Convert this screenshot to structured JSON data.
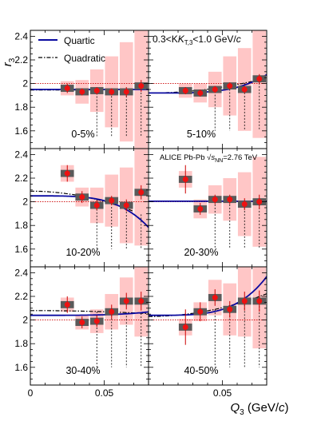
{
  "figure": {
    "y_title": "r",
    "y_title_sub": "3",
    "x_title": "Q",
    "x_title_sub": "3",
    "x_title_unit": " (GeV/",
    "x_title_unit_c": "c",
    "x_title_close": ")"
  },
  "legend": {
    "quartic": "Quartic",
    "quadratic": "Quadratic"
  },
  "annotations": {
    "kt": "0.3<K",
    "kt_sub": "T,3",
    "kt_rest": "<1.0 GeV/",
    "kt_c": "c",
    "system": "ALICE Pb-Pb ",
    "sqrt_sym": "√",
    "snn": "s",
    "snn_sub": "NN",
    "energy": "=2.76 TeV"
  },
  "colors": {
    "quartic": "#0a0aa0",
    "quadratic": "#000000",
    "marker": "#ee1111",
    "stat_bar": "#cc0000",
    "sys_box": "#5a5a5a",
    "band": "#ffc6c6",
    "unity_line": "#cc0000",
    "frame": "#000000"
  },
  "chart_data": [
    {
      "type": "scatter",
      "centrality": "0-5%",
      "x": [
        0.025,
        0.035,
        0.045,
        0.055,
        0.065,
        0.075
      ],
      "y": [
        1.96,
        1.93,
        1.94,
        1.93,
        1.93,
        1.98
      ],
      "stat_err": [
        0.04,
        0.03,
        0.03,
        0.03,
        0.04,
        0.05
      ],
      "sys_err": [
        0.03,
        0.03,
        0.03,
        0.03,
        0.03,
        0.03
      ],
      "band": [
        0.06,
        0.1,
        0.18,
        0.3,
        0.42,
        0.6
      ],
      "quartic": {
        "a": 1.95,
        "b": 1e-05
      },
      "quadratic": {
        "a": 1.945,
        "b": 1.0,
        "lo": 1.55,
        "draw_to": 0.07
      },
      "ylim": [
        1.45,
        2.45
      ],
      "xlim": [
        0,
        0.08
      ]
    },
    {
      "type": "scatter",
      "centrality": "5-10%",
      "x": [
        0.025,
        0.035,
        0.045,
        0.055,
        0.065,
        0.075
      ],
      "y": [
        1.94,
        1.92,
        1.95,
        1.98,
        1.95,
        2.04
      ],
      "stat_err": [
        0.03,
        0.03,
        0.03,
        0.03,
        0.03,
        0.04
      ],
      "sys_err": [
        0.03,
        0.03,
        0.03,
        0.03,
        0.03,
        0.03
      ],
      "band": [
        0.06,
        0.08,
        0.15,
        0.25,
        0.35,
        0.5
      ],
      "quartic": {
        "a": 1.92,
        "b": 3800
      },
      "quadratic": {
        "a": 1.92,
        "b": 20,
        "lo": 1.6,
        "draw_to": 0.07
      },
      "ylim": [
        1.45,
        2.45
      ],
      "xlim": [
        0,
        0.08
      ]
    },
    {
      "type": "scatter",
      "centrality": "10-20%",
      "x": [
        0.025,
        0.035,
        0.045,
        0.055,
        0.065,
        0.075
      ],
      "y": [
        2.24,
        2.04,
        1.97,
        2.01,
        1.97,
        2.08
      ],
      "stat_err": [
        0.07,
        0.05,
        0.04,
        0.04,
        0.05,
        0.06
      ],
      "sys_err": [
        0.03,
        0.03,
        0.03,
        0.03,
        0.03,
        0.03
      ],
      "band": [
        0.07,
        0.08,
        0.15,
        0.22,
        0.32,
        0.45
      ],
      "quartic": {
        "a": 2.05,
        "b": -6500
      },
      "quadratic": {
        "a": 2.09,
        "b": -35,
        "lo": 1.6,
        "draw_to": 0.07
      },
      "ylim": [
        1.45,
        2.45
      ],
      "xlim": [
        0,
        0.08
      ]
    },
    {
      "type": "scatter",
      "centrality": "20-30%",
      "x": [
        0.025,
        0.035,
        0.045,
        0.055,
        0.065,
        0.075
      ],
      "y": [
        2.19,
        1.94,
        2.02,
        2.02,
        1.98,
        2.0
      ],
      "stat_err": [
        0.12,
        0.05,
        0.04,
        0.04,
        0.05,
        0.06
      ],
      "sys_err": [
        0.03,
        0.03,
        0.03,
        0.03,
        0.03,
        0.03
      ],
      "band": [
        0.07,
        0.08,
        0.12,
        0.18,
        0.27,
        0.38
      ],
      "quartic": {
        "a": 2.005,
        "b": 0
      },
      "quadratic": {
        "a": 2.005,
        "b": 0,
        "lo": 1.6,
        "draw_to": 0.07
      },
      "ylim": [
        1.45,
        2.45
      ],
      "xlim": [
        0,
        0.08
      ]
    },
    {
      "type": "scatter",
      "centrality": "30-40%",
      "x": [
        0.025,
        0.035,
        0.045,
        0.055,
        0.065,
        0.075
      ],
      "y": [
        2.13,
        1.98,
        1.99,
        2.07,
        2.16,
        2.16
      ],
      "stat_err": [
        0.07,
        0.05,
        0.05,
        0.06,
        0.07,
        0.08
      ],
      "sys_err": [
        0.03,
        0.03,
        0.03,
        0.03,
        0.03,
        0.03
      ],
      "band": [
        0.06,
        0.06,
        0.1,
        0.15,
        0.2,
        0.3
      ],
      "quartic": {
        "a": 2.04,
        "b": 700
      },
      "quadratic": {
        "a": 2.08,
        "b": -4,
        "lo": 1.6,
        "draw_to": 0.08
      },
      "ylim": [
        1.45,
        2.45
      ],
      "xlim": [
        0,
        0.08
      ]
    },
    {
      "type": "scatter",
      "centrality": "40-50%",
      "x": [
        0.025,
        0.035,
        0.045,
        0.055,
        0.065,
        0.075
      ],
      "y": [
        1.94,
        2.07,
        2.19,
        2.09,
        2.16,
        2.16
      ],
      "stat_err": [
        0.15,
        0.08,
        0.07,
        0.07,
        0.08,
        0.09
      ],
      "sys_err": [
        0.03,
        0.03,
        0.03,
        0.03,
        0.03,
        0.03
      ],
      "band": [
        0.07,
        0.08,
        0.15,
        0.22,
        0.3,
        0.4
      ],
      "quartic": {
        "a": 2.04,
        "b": 8000
      },
      "quadratic": {
        "a": 2.03,
        "b": 30,
        "lo": 1.6,
        "draw_to": 0.08
      },
      "ylim": [
        1.45,
        2.45
      ],
      "xlim": [
        0,
        0.08
      ]
    }
  ],
  "axes": {
    "y_ticks": [
      "1.6",
      "1.8",
      "2",
      "2.2",
      "2.4"
    ],
    "x_ticks_left": [
      "0",
      "0.05"
    ],
    "x_ticks_right": [
      "0.05"
    ]
  }
}
